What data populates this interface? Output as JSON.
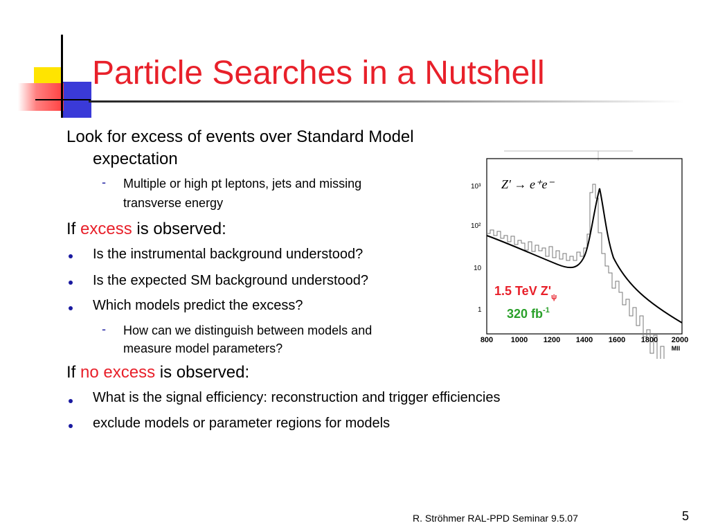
{
  "slide": {
    "title": "Particle Searches in a Nutshell",
    "body": {
      "p1_line1": "Look for excess of events over Standard Model",
      "p1_line2": "expectation",
      "p1_sub_line1": "Multiple or high pt leptons, jets and missing",
      "p1_sub_line2": "transverse energy",
      "p2_prefix": "If ",
      "p2_highlight": "excess",
      "p2_suffix": " is observed:",
      "p2_bullets": [
        "Is the instrumental background understood?",
        "Is the expected SM background understood?",
        "Which models predict the excess?"
      ],
      "p2_sub_line1": "How can we distinguish between models and",
      "p2_sub_line2": "measure model parameters?",
      "p3_prefix": "If ",
      "p3_highlight": "no excess",
      "p3_suffix": " is observed:",
      "p3_bullets": [
        "What is the signal efficiency: reconstruction and trigger efficiencies",
        "exclude models or parameter regions for models"
      ]
    },
    "footer": "R. Ströhmer   RAL-PPD Seminar 9.5.07",
    "page_number": "5"
  },
  "figure": {
    "process": "Z′ → e⁺e⁻",
    "signal_label": "1.5 TeV Z'",
    "signal_subscript": "ψ",
    "lumi_label": "320 fb",
    "lumi_superscript": "-1",
    "x_axis_label": "Mll",
    "x_ticks": [
      "800",
      "1000",
      "1200",
      "1400",
      "1600",
      "1800",
      "2000"
    ],
    "y_ticks": [
      "10³",
      "10²",
      "10",
      "1"
    ],
    "colors": {
      "signal_label": "#e8202a",
      "lumi_label": "#2aa02a"
    }
  },
  "colors": {
    "title": "#e8202a",
    "accent_red": "#e8202a",
    "bullet": "#1a1aa0"
  }
}
